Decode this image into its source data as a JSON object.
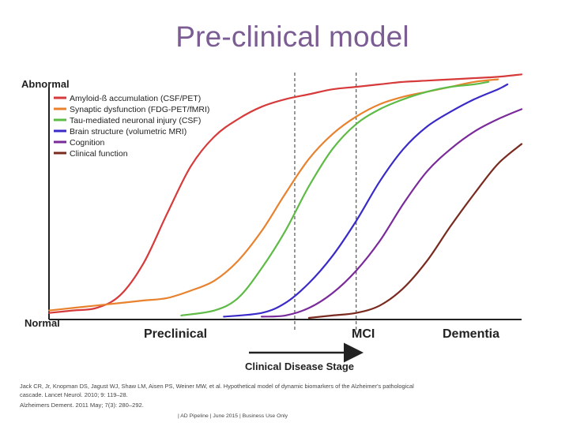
{
  "slide": {
    "title": "Pre-clinical model",
    "citation_line1": "Jack CR, Jr, Knopman DS, Jagust WJ, Shaw LM, Aisen PS, Weiner MW, et al. Hypothetical model of dynamic biomarkers of the Alzheimer's pathological",
    "citation_line2": "cascade. Lancet Neurol. 2010; 9: 119–28.",
    "citation_line3": "Alzheimers Dement. 2011 May; 7(3): 280–292.",
    "footer": "| AD Pipeline | June 2015 | Business Use Only"
  },
  "chart_data": {
    "type": "line",
    "title": "",
    "ylabel_top": "Abnormal",
    "ylabel_bottom": "Normal",
    "xlabel": "Clinical Disease Stage",
    "stages": [
      "Preclinical",
      "MCI",
      "Dementia"
    ],
    "xlim": [
      0,
      100
    ],
    "ylim": [
      0,
      100
    ],
    "stage_dividers": [
      52,
      65
    ],
    "legend_position": "top-left",
    "series": [
      {
        "name": "Amyloid-ß accumulation (CSF/PET)",
        "color": "#d63a3a",
        "x": [
          0,
          5,
          10,
          15,
          20,
          25,
          30,
          35,
          40,
          45,
          50,
          55,
          60,
          65,
          70,
          75,
          80,
          85,
          90,
          95,
          100
        ],
        "y": [
          2,
          3,
          4,
          9,
          22,
          42,
          61,
          73,
          80,
          85,
          88,
          90,
          92,
          93,
          94,
          95,
          95.5,
          96,
          96.5,
          97,
          98
        ]
      },
      {
        "name": "Synaptic dysfunction (FDG-PET/fMRI)",
        "color": "#e8822e",
        "x": [
          0,
          5,
          10,
          15,
          20,
          25,
          30,
          35,
          40,
          45,
          50,
          55,
          60,
          65,
          70,
          75,
          80,
          85,
          90,
          95
        ],
        "y": [
          3,
          4,
          5,
          6,
          7,
          8,
          11,
          15,
          23,
          35,
          50,
          64,
          74,
          81,
          86,
          89,
          91,
          93,
          95,
          96
        ]
      },
      {
        "name": "Tau-mediated neuronal injury (CSF)",
        "color": "#5dbb46",
        "x": [
          28,
          35,
          40,
          45,
          50,
          55,
          60,
          65,
          70,
          75,
          80,
          85,
          90,
          93
        ],
        "y": [
          1,
          3,
          8,
          20,
          35,
          53,
          68,
          78,
          84,
          88,
          91,
          93,
          94,
          95
        ]
      },
      {
        "name": "Brain structure (volumetric MRI)",
        "color": "#3a2bc8",
        "x": [
          37,
          45,
          50,
          55,
          60,
          65,
          70,
          75,
          80,
          85,
          90,
          95,
          97
        ],
        "y": [
          0.5,
          2,
          6,
          14,
          25,
          39,
          55,
          68,
          77,
          83,
          88,
          92,
          94
        ]
      },
      {
        "name": "Cognition",
        "color": "#7a2a9a",
        "x": [
          45,
          50,
          55,
          60,
          65,
          70,
          75,
          80,
          85,
          90,
          95,
          100
        ],
        "y": [
          0.5,
          1,
          4,
          10,
          19,
          31,
          46,
          59,
          68,
          75,
          80,
          84
        ]
      },
      {
        "name": "Clinical function",
        "color": "#7a2a1e",
        "x": [
          55,
          60,
          65,
          70,
          75,
          80,
          85,
          90,
          95,
          100
        ],
        "y": [
          0,
          1,
          2,
          5,
          12,
          23,
          37,
          50,
          62,
          70
        ]
      }
    ]
  }
}
